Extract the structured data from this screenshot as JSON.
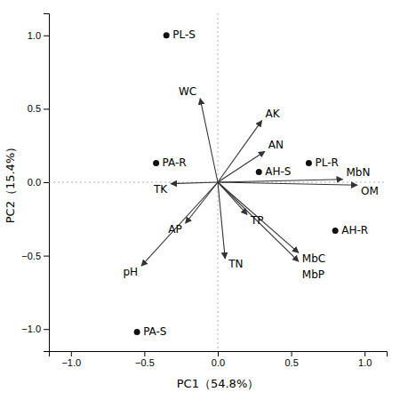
{
  "chart_data": {
    "type": "biplot",
    "xlabel": "PC1（54.8%）",
    "ylabel": "PC2（15.4%）",
    "xlim": [
      -1.15,
      1.15
    ],
    "ylim": [
      -1.15,
      1.15
    ],
    "xticks": [
      {
        "value": -1.0,
        "label": "−1.0"
      },
      {
        "value": -0.5,
        "label": "−0.5"
      },
      {
        "value": 0.0,
        "label": "0.0"
      },
      {
        "value": 0.5,
        "label": "0.5"
      },
      {
        "value": 1.0,
        "label": "1.0"
      }
    ],
    "yticks": [
      {
        "value": -1.0,
        "label": "−1.0"
      },
      {
        "value": -0.5,
        "label": "−0.5"
      },
      {
        "value": 0.0,
        "label": "0.0"
      },
      {
        "value": 0.5,
        "label": "0.5"
      },
      {
        "value": 1.0,
        "label": "1.0"
      }
    ],
    "points": {
      "labels": [
        "PL-S",
        "PA-R",
        "PA-S",
        "AH-S",
        "PL-R",
        "AH-R"
      ],
      "x": [
        -0.35,
        -0.42,
        -0.55,
        0.28,
        0.62,
        0.8
      ],
      "y": [
        1.0,
        0.13,
        -1.02,
        0.07,
        0.13,
        -0.33
      ],
      "color": "#111111"
    },
    "arrows": {
      "labels": [
        "WC",
        "AK",
        "AN",
        "MbN",
        "OM",
        "TK",
        "AP",
        "TP",
        "TN",
        "MbC",
        "MbP",
        "pH"
      ],
      "x": [
        -0.12,
        0.3,
        0.32,
        0.85,
        0.95,
        -0.32,
        -0.22,
        0.2,
        0.05,
        0.55,
        0.55,
        -0.52
      ],
      "y": [
        0.57,
        0.42,
        0.21,
        0.02,
        -0.02,
        -0.01,
        -0.28,
        -0.22,
        -0.52,
        -0.48,
        -0.54,
        -0.57
      ],
      "color": "#333333"
    }
  }
}
